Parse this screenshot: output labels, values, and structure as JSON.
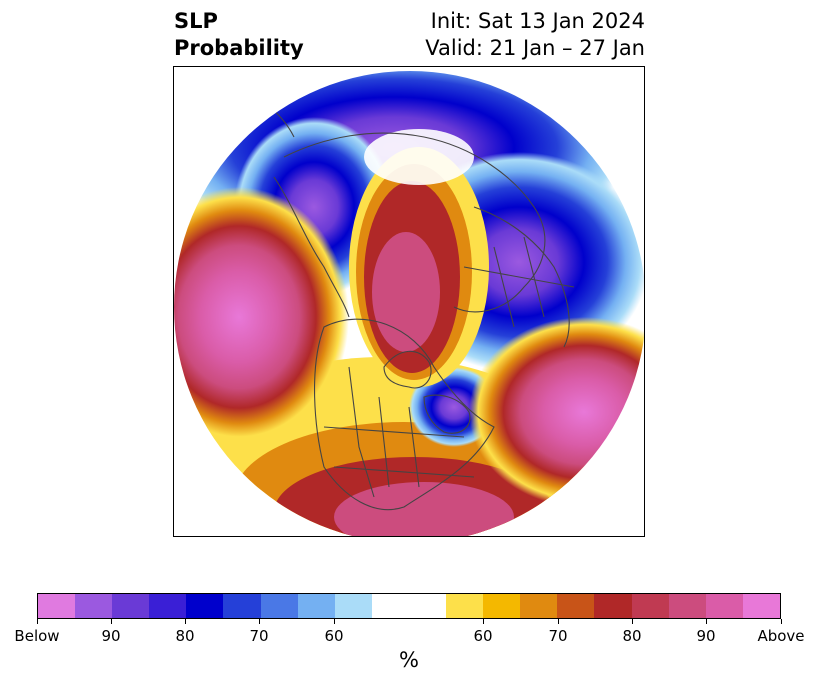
{
  "title": {
    "left_line1": "SLP",
    "left_line2": "Probability",
    "init": "Init: Sat 13 Jan 2024",
    "valid": "Valid: 21 Jan – 27 Jan"
  },
  "colorbar": {
    "colors": [
      "#e07ae0",
      "#9b59e0",
      "#6a3ad6",
      "#3a1fd6",
      "#0000cc",
      "#2540d8",
      "#4a78e6",
      "#74b0f2",
      "#aadcf8",
      "#ffffff",
      "#fde04a",
      "#f4b800",
      "#e08a10",
      "#c85418",
      "#b02828",
      "#c03a52",
      "#cc4c7e",
      "#da5ca8",
      "#e878d8"
    ],
    "tick_labels": [
      "Below",
      "90",
      "80",
      "70",
      "60",
      "60",
      "70",
      "80",
      "90",
      "Above"
    ],
    "unit": "%"
  }
}
